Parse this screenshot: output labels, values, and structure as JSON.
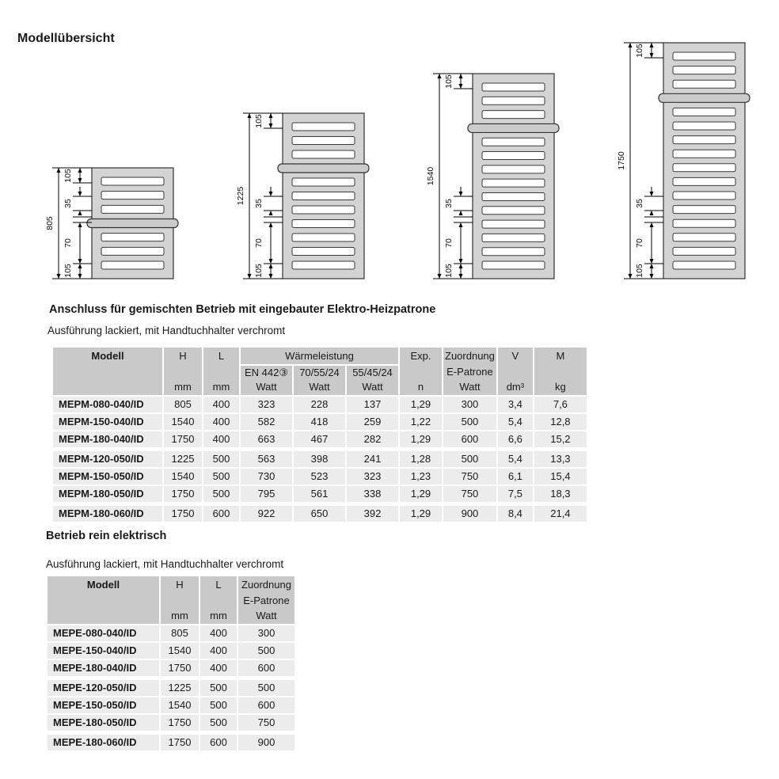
{
  "page": {
    "title": "Modellübersicht"
  },
  "sections": {
    "mixed": {
      "heading": "Anschluss für gemischten Betrieb mit eingebauter Elektro-Heizpatrone",
      "subheading": "Ausführung lackiert, mit Handtuchhalter verchromt"
    },
    "electric": {
      "heading": "Betrieb rein elektrisch",
      "subheading": "Ausführung lackiert, mit Handtuchhalter verchromt"
    }
  },
  "drawings": {
    "items": [
      {
        "total_height_mm": "805",
        "slat_count": 7,
        "dim_labels": [
          "105",
          "35",
          "70",
          "105"
        ]
      },
      {
        "total_height_mm": "1225",
        "slat_count": 11,
        "dim_labels": [
          "105",
          "35",
          "70",
          "105"
        ]
      },
      {
        "total_height_mm": "1540",
        "slat_count": 14,
        "dim_labels": [
          "105",
          "35",
          "70",
          "105"
        ]
      },
      {
        "total_height_mm": "1750",
        "slat_count": 16,
        "dim_labels": [
          "105",
          "35",
          "70",
          "105"
        ]
      }
    ]
  },
  "tables": {
    "mixed": {
      "header": {
        "modell": "Modell",
        "h": "H",
        "l": "L",
        "mm": "mm",
        "waermeleistung": "Wärmeleistung",
        "sub1_line1": "EN 442③",
        "sub1_line2": "Watt",
        "sub2_line1": "70/55/24",
        "sub2_line2": "Watt",
        "sub3_line1": "55/45/24",
        "sub3_line2": "Watt",
        "exp": "Exp.",
        "exp_unit": "n",
        "zuordnung_line1": "Zuordnung",
        "zuordnung_line2": "E-Patrone",
        "zuordnung_line3": "Watt",
        "v": "V",
        "v_unit": "dm³",
        "m": "M",
        "m_unit": "kg"
      },
      "rows": [
        [
          "MEPM-080-040/ID",
          "805",
          "400",
          "323",
          "228",
          "137",
          "1,29",
          "300",
          "3,4",
          "7,6"
        ],
        [
          "MEPM-150-040/ID",
          "1540",
          "400",
          "582",
          "418",
          "259",
          "1,22",
          "500",
          "5,4",
          "12,8"
        ],
        [
          "MEPM-180-040/ID",
          "1750",
          "400",
          "663",
          "467",
          "282",
          "1,29",
          "600",
          "6,6",
          "15,2"
        ],
        [
          "MEPM-120-050/ID",
          "1225",
          "500",
          "563",
          "398",
          "241",
          "1,28",
          "500",
          "5,4",
          "13,3"
        ],
        [
          "MEPM-150-050/ID",
          "1540",
          "500",
          "730",
          "523",
          "323",
          "1,23",
          "750",
          "6,1",
          "15,4"
        ],
        [
          "MEPM-180-050/ID",
          "1750",
          "500",
          "795",
          "561",
          "338",
          "1,29",
          "750",
          "7,5",
          "18,3"
        ],
        [
          "MEPM-180-060/ID",
          "1750",
          "600",
          "922",
          "650",
          "392",
          "1,29",
          "900",
          "8,4",
          "21,4"
        ]
      ],
      "group_gap_before_rows": [
        3,
        6
      ]
    },
    "electric": {
      "header": {
        "modell": "Modell",
        "h": "H",
        "l": "L",
        "mm": "mm",
        "zuordnung_line1": "Zuordnung",
        "zuordnung_line2": "E-Patrone",
        "zuordnung_line3": "Watt"
      },
      "rows": [
        [
          "MEPE-080-040/ID",
          "805",
          "400",
          "300"
        ],
        [
          "MEPE-150-040/ID",
          "1540",
          "400",
          "500"
        ],
        [
          "MEPE-180-040/ID",
          "1750",
          "400",
          "600"
        ],
        [
          "MEPE-120-050/ID",
          "1225",
          "500",
          "500"
        ],
        [
          "MEPE-150-050/ID",
          "1540",
          "500",
          "600"
        ],
        [
          "MEPE-180-050/ID",
          "1750",
          "500",
          "750"
        ],
        [
          "MEPE-180-060/ID",
          "1750",
          "600",
          "900"
        ]
      ],
      "group_gap_before_rows": [
        3,
        6
      ]
    }
  },
  "colors": {
    "table_header_bg": "#c9c9c9",
    "table_row_bg": "#ececec",
    "radiator_body": "#d3d3d3",
    "radiator_slat": "#ffffff",
    "towel_bar": "#cbcbcb",
    "outline": "#333333"
  }
}
